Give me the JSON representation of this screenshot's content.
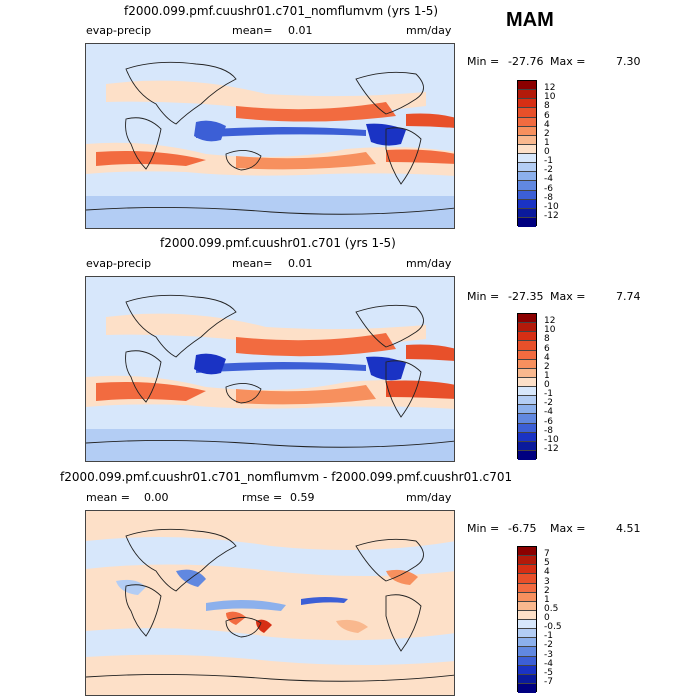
{
  "season": "MAM",
  "panels": [
    {
      "title": "f2000.099.pmf.cuushr01.c701_nomflumvm (yrs 1-5)",
      "variable": "evap-precip",
      "stat_label": "mean=",
      "stat_value": "0.01",
      "units": "mm/day",
      "min_label": "Min =",
      "min_value": "-27.76",
      "max_label": "Max =",
      "max_value": "7.30",
      "levels": [
        "12",
        "10",
        "8",
        "6",
        "4",
        "2",
        "1",
        "0",
        "-1",
        "-2",
        "-4",
        "-6",
        "-8",
        "-10",
        "-12"
      ],
      "colors": [
        "#8b0000",
        "#b31a0a",
        "#d62f14",
        "#e8502a",
        "#f26b40",
        "#f7905e",
        "#f9b88e",
        "#fde0c8",
        "#d7e7fb",
        "#b3cdf4",
        "#8cb0ec",
        "#6188e0",
        "#3c5fd6",
        "#1a33c4",
        "#0a1a9c",
        "#000080"
      ]
    },
    {
      "title": "f2000.099.pmf.cuushr01.c701 (yrs 1-5)",
      "variable": "evap-precip",
      "stat_label": "mean=",
      "stat_value": "0.01",
      "units": "mm/day",
      "min_label": "Min =",
      "min_value": "-27.35",
      "max_label": "Max =",
      "max_value": "7.74",
      "levels": [
        "12",
        "10",
        "8",
        "6",
        "4",
        "2",
        "1",
        "0",
        "-1",
        "-2",
        "-4",
        "-6",
        "-8",
        "-10",
        "-12"
      ],
      "colors": [
        "#8b0000",
        "#b31a0a",
        "#d62f14",
        "#e8502a",
        "#f26b40",
        "#f7905e",
        "#f9b88e",
        "#fde0c8",
        "#d7e7fb",
        "#b3cdf4",
        "#8cb0ec",
        "#6188e0",
        "#3c5fd6",
        "#1a33c4",
        "#0a1a9c",
        "#000080"
      ]
    },
    {
      "title": "f2000.099.pmf.cuushr01.c701_nomflumvm - f2000.099.pmf.cuushr01.c701",
      "stat_label": "mean =",
      "stat_value": "0.00",
      "rmse_label": "rmse =",
      "rmse_value": "0.59",
      "units": "mm/day",
      "min_label": "Min =",
      "min_value": "-6.75",
      "max_label": "Max =",
      "max_value": "4.51",
      "levels": [
        "7",
        "5",
        "4",
        "3",
        "2",
        "1",
        "0.5",
        "0",
        "-0.5",
        "-1",
        "-2",
        "-3",
        "-4",
        "-5",
        "-7"
      ],
      "colors": [
        "#8b0000",
        "#b31a0a",
        "#d62f14",
        "#e8502a",
        "#f26b40",
        "#f7905e",
        "#f9b88e",
        "#fde0c8",
        "#d7e7fb",
        "#b3cdf4",
        "#8cb0ec",
        "#6188e0",
        "#3c5fd6",
        "#1a33c4",
        "#0a1a9c",
        "#000080"
      ]
    }
  ]
}
